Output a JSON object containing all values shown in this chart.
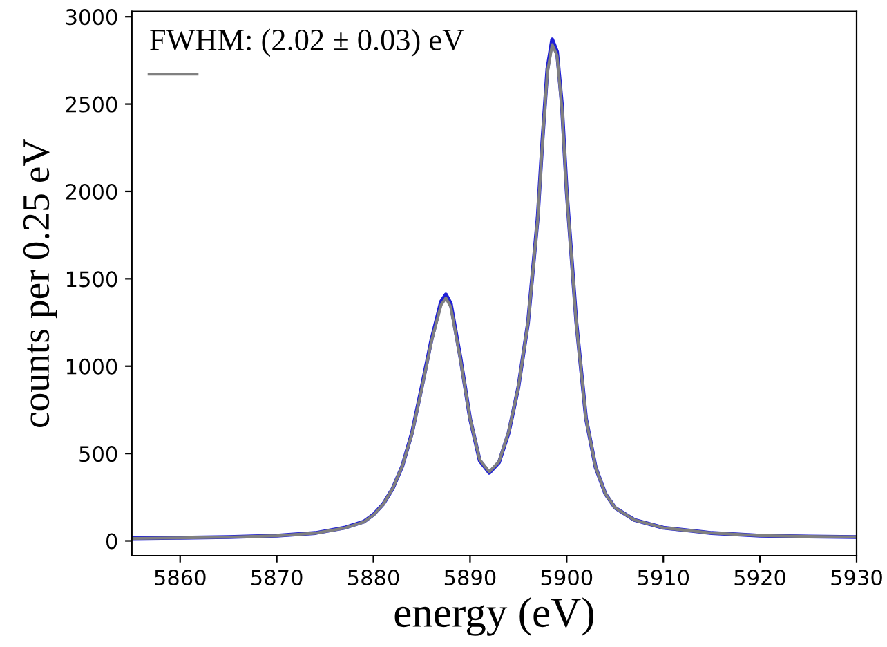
{
  "chart_data": {
    "type": "line",
    "xlabel": "energy (eV)",
    "ylabel": "counts per 0.25 eV",
    "x": [
      5855,
      5860,
      5865,
      5870,
      5874,
      5877,
      5879,
      5880,
      5881,
      5882,
      5883,
      5884,
      5885,
      5886,
      5887,
      5887.5,
      5888,
      5889,
      5890,
      5891,
      5892,
      5893,
      5894,
      5895,
      5896,
      5897,
      5897.5,
      5898,
      5898.5,
      5899,
      5899.5,
      5900,
      5901,
      5902,
      5903,
      5904,
      5905,
      5907,
      5910,
      5915,
      5920,
      5925,
      5930
    ],
    "series": [
      {
        "color": "#1f1fd6",
        "values": [
          15,
          18,
          22,
          30,
          45,
          75,
          110,
          150,
          210,
          300,
          430,
          620,
          880,
          1150,
          1370,
          1410,
          1360,
          1050,
          700,
          460,
          390,
          450,
          620,
          880,
          1250,
          1850,
          2300,
          2700,
          2870,
          2800,
          2500,
          2000,
          1250,
          700,
          420,
          270,
          190,
          120,
          75,
          45,
          30,
          25,
          22
        ]
      },
      {
        "name": "FWHM: (2.02 ± 0.03) eV",
        "color": "#808080",
        "values": [
          14,
          17,
          21,
          29,
          44,
          73,
          108,
          148,
          208,
          300,
          430,
          615,
          870,
          1140,
          1350,
          1390,
          1340,
          1040,
          700,
          465,
          395,
          455,
          625,
          880,
          1250,
          1840,
          2290,
          2680,
          2840,
          2780,
          2480,
          1990,
          1240,
          700,
          420,
          270,
          190,
          120,
          75,
          45,
          30,
          25,
          22
        ]
      }
    ],
    "xlim": [
      5855,
      5930
    ],
    "xticks": [
      5860,
      5870,
      5880,
      5890,
      5900,
      5910,
      5920,
      5930
    ],
    "ylim": [
      -85,
      3030
    ],
    "yticks": [
      0,
      500,
      1000,
      1500,
      2000,
      2500,
      3000
    ],
    "grid": false,
    "legend": "top left",
    "line_style": "solid",
    "marker": "none"
  }
}
